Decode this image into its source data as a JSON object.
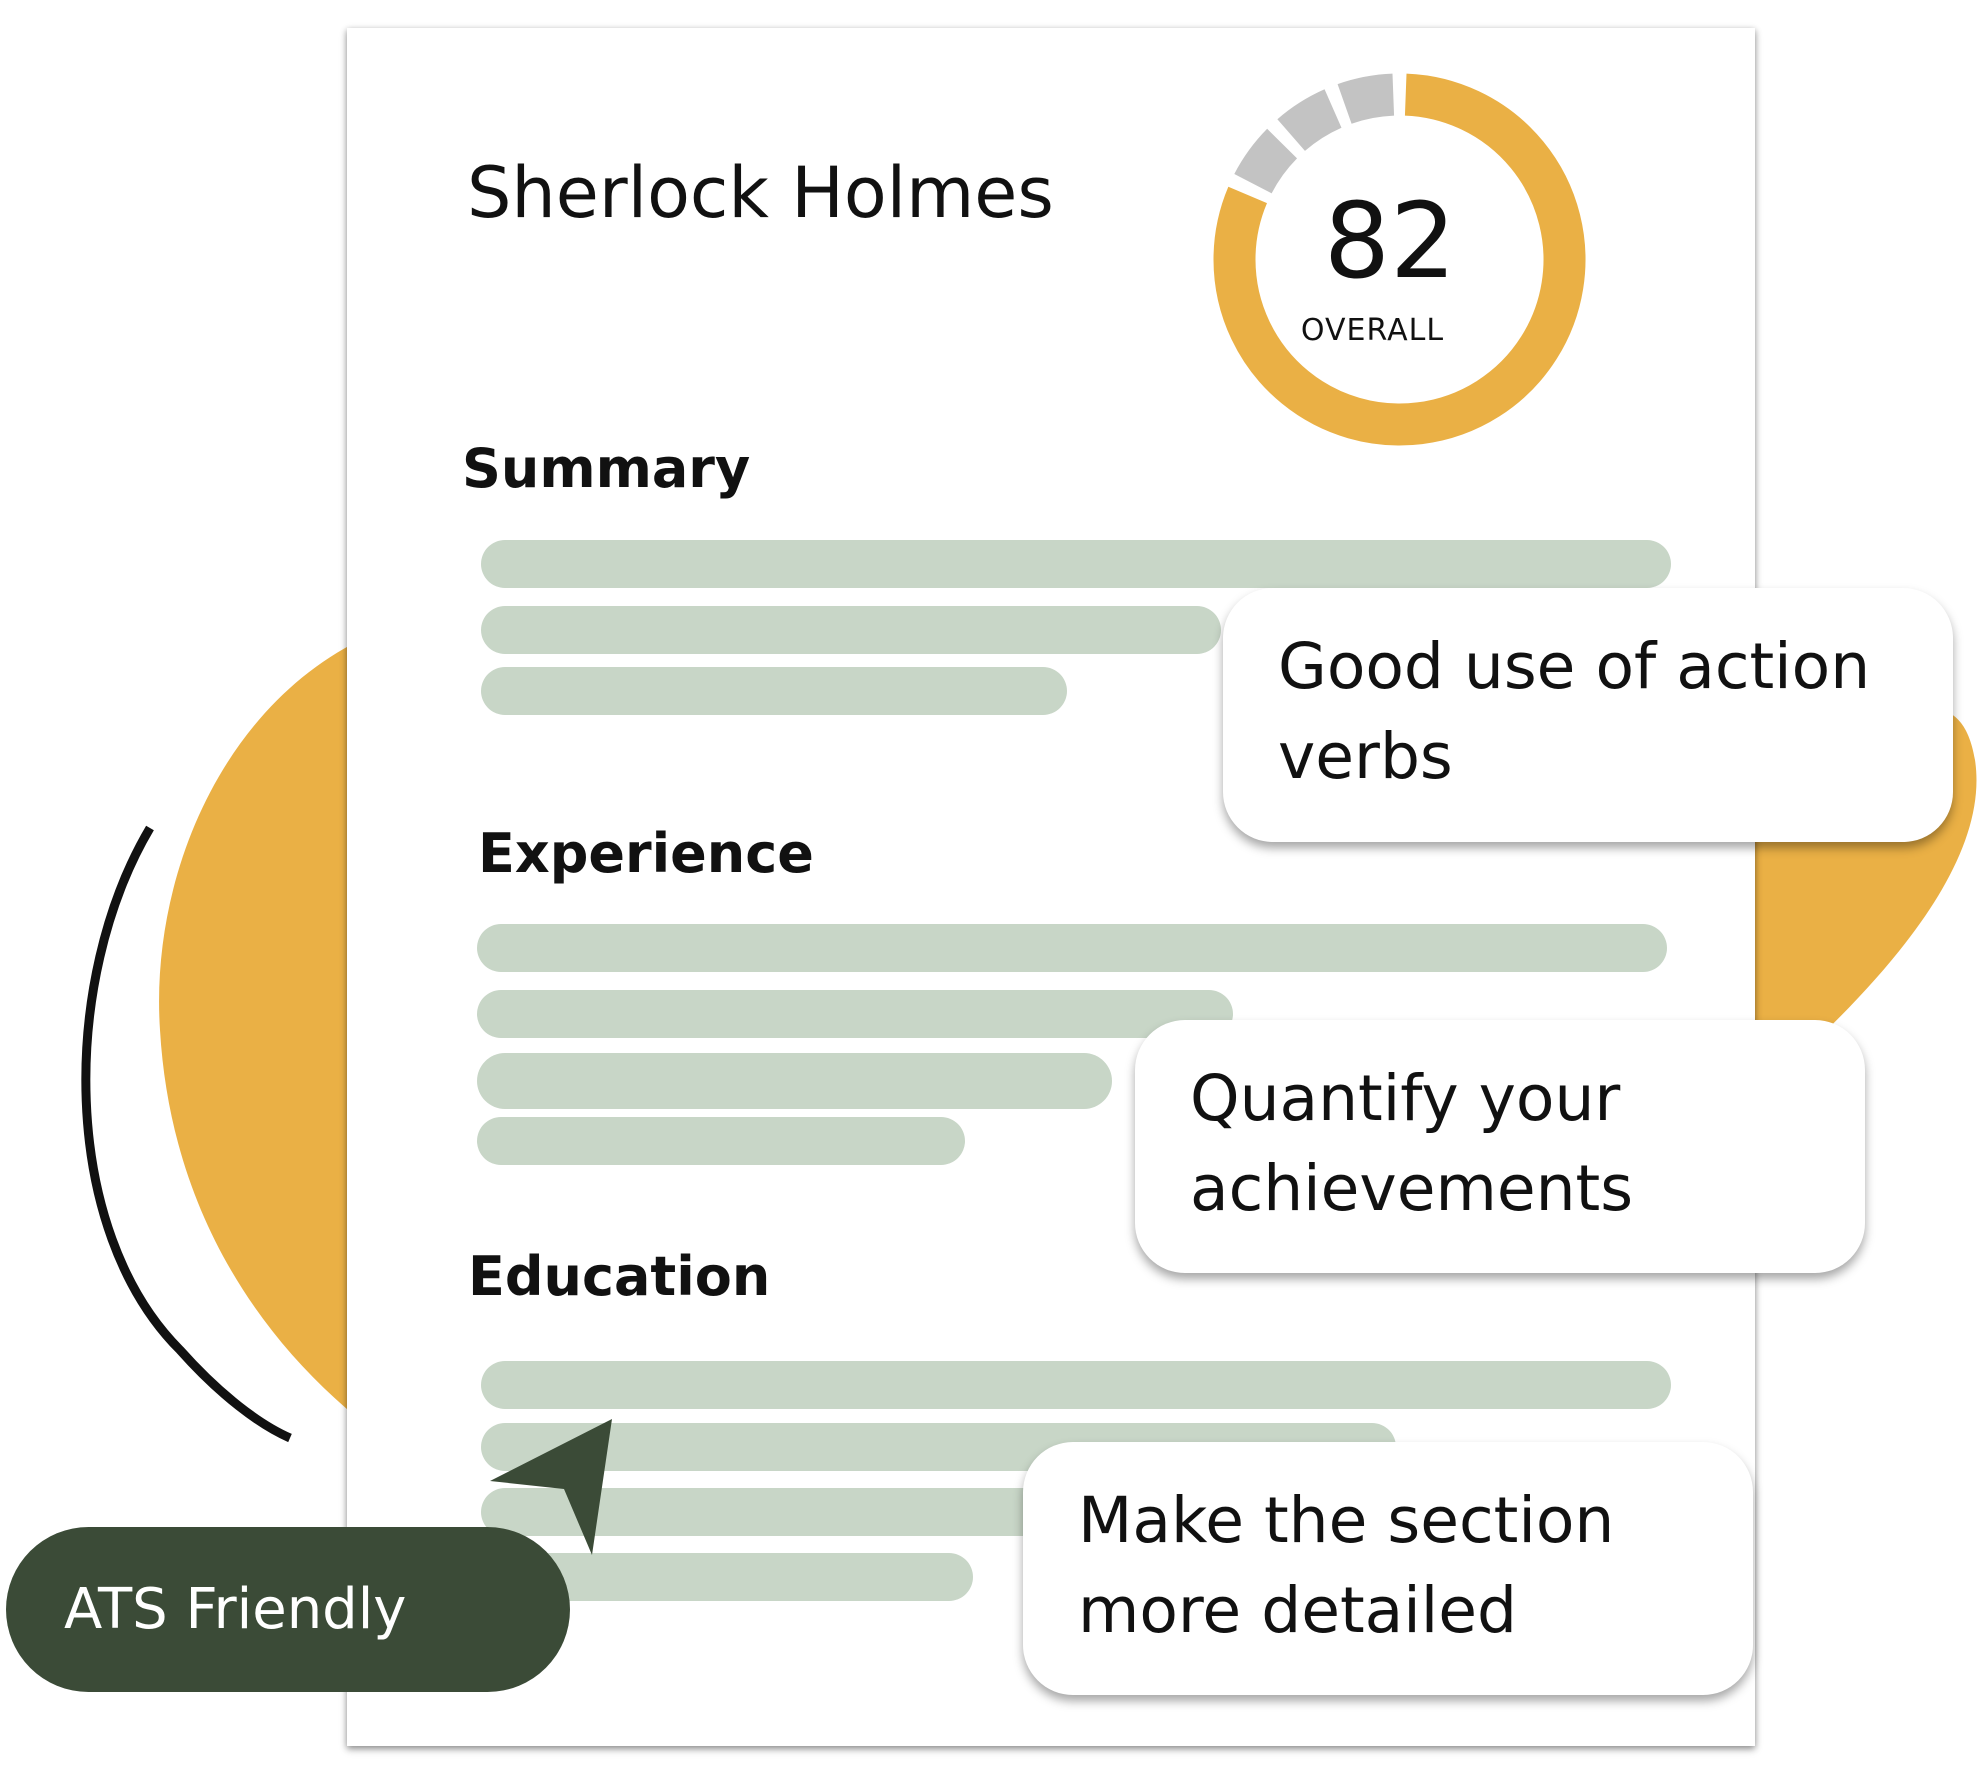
{
  "colors": {
    "accent_orange": "#eab045",
    "track_gray": "#c3c3c3",
    "placeholder_line_green": "#c8d6c7",
    "dark_green": "#3b4b37",
    "card_white": "#ffffff"
  },
  "resume": {
    "name": "Sherlock Holmes",
    "sections": [
      {
        "title": "Summary"
      },
      {
        "title": "Experience"
      },
      {
        "title": "Education"
      }
    ]
  },
  "score": {
    "value": "82",
    "label": "OVERALL",
    "fraction": 0.82
  },
  "callouts": [
    {
      "lines": [
        "Good use of action",
        "verbs"
      ]
    },
    {
      "lines": [
        "Quantify your",
        "achievements"
      ]
    },
    {
      "lines": [
        "Make the section",
        "more detailed"
      ]
    }
  ],
  "badge": {
    "label": "ATS Friendly"
  },
  "icons": {
    "pointer": "cursor-arrow-icon"
  }
}
